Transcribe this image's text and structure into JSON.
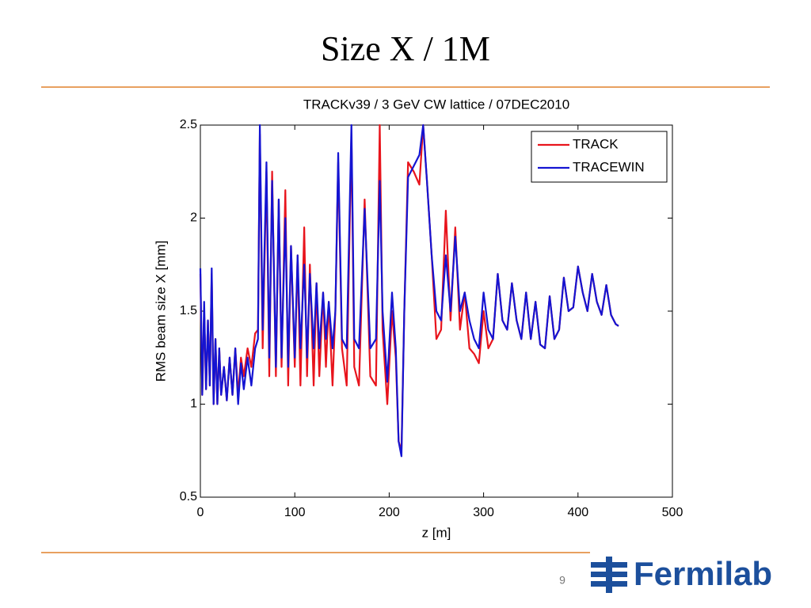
{
  "slide": {
    "title": "Size X / 1M",
    "page_number": "9",
    "logo_text": "Fermilab"
  },
  "chart_data": {
    "type": "line",
    "title": "TRACKv39 / 3 GeV CW lattice / 07DEC2010",
    "x_label": "z [m]",
    "y_label": "RMS beam size X [mm]",
    "x": [
      0,
      2,
      4,
      6,
      8,
      10,
      12,
      14,
      16,
      18,
      20,
      22,
      25,
      28,
      31,
      34,
      37,
      40,
      43,
      46,
      50,
      54,
      58,
      61,
      63,
      66,
      70,
      73,
      76,
      80,
      83,
      86,
      90,
      93,
      96,
      100,
      103,
      106,
      110,
      113,
      116,
      120,
      123,
      126,
      130,
      133,
      136,
      140,
      143,
      146,
      150,
      155,
      160,
      163,
      168,
      174,
      180,
      186,
      190,
      193,
      198,
      203,
      207,
      210,
      213,
      216,
      220,
      226,
      232,
      236,
      240,
      245,
      250,
      255,
      260,
      265,
      270,
      275,
      280,
      285,
      290,
      295,
      300,
      305,
      310,
      315,
      320,
      325,
      330,
      335,
      340,
      345,
      350,
      355,
      360,
      365,
      370,
      375,
      380,
      385,
      390,
      395,
      400,
      405,
      410,
      415,
      420,
      425,
      430,
      435,
      440,
      443
    ],
    "series": [
      {
        "name": "TRACK",
        "color": "#e8141c",
        "values": [
          1.7,
          1.05,
          1.5,
          1.08,
          1.45,
          1.1,
          1.7,
          1.0,
          1.35,
          1.0,
          1.3,
          1.05,
          1.2,
          1.02,
          1.25,
          1.05,
          1.3,
          1.05,
          1.25,
          1.15,
          1.3,
          1.2,
          1.38,
          1.4,
          2.45,
          1.3,
          2.25,
          1.15,
          2.25,
          1.15,
          2.1,
          1.2,
          2.15,
          1.1,
          1.85,
          1.2,
          1.8,
          1.1,
          1.95,
          1.15,
          1.75,
          1.1,
          1.65,
          1.15,
          1.6,
          1.2,
          1.55,
          1.1,
          1.5,
          2.3,
          1.3,
          1.1,
          2.45,
          1.2,
          1.1,
          2.1,
          1.15,
          1.1,
          2.5,
          1.4,
          1.0,
          1.5,
          1.25,
          0.8,
          0.75,
          1.5,
          2.3,
          2.25,
          2.18,
          2.5,
          2.2,
          1.8,
          1.35,
          1.4,
          2.04,
          1.45,
          1.95,
          1.4,
          1.6,
          1.3,
          1.27,
          1.22,
          1.5,
          1.3,
          1.35,
          1.7,
          1.45,
          1.4,
          1.65,
          1.45,
          1.35,
          1.6,
          1.35,
          1.55,
          1.32,
          1.3,
          1.58,
          1.35,
          1.4,
          1.68,
          1.5,
          1.52,
          1.74,
          1.6,
          1.5,
          1.7,
          1.55,
          1.48,
          1.64,
          1.48,
          1.43,
          1.42
        ]
      },
      {
        "name": "TRACEWIN",
        "color": "#1414d2",
        "values": [
          1.73,
          1.05,
          1.55,
          1.08,
          1.45,
          1.1,
          1.73,
          1.0,
          1.35,
          1.0,
          1.3,
          1.05,
          1.2,
          1.02,
          1.25,
          1.05,
          1.3,
          1.0,
          1.22,
          1.08,
          1.25,
          1.1,
          1.3,
          1.35,
          2.5,
          1.4,
          2.3,
          1.25,
          2.2,
          1.2,
          2.1,
          1.25,
          2.0,
          1.2,
          1.85,
          1.25,
          1.8,
          1.3,
          1.75,
          1.25,
          1.7,
          1.3,
          1.65,
          1.3,
          1.6,
          1.35,
          1.55,
          1.3,
          1.5,
          2.35,
          1.35,
          1.3,
          2.5,
          1.35,
          1.3,
          2.05,
          1.3,
          1.35,
          2.2,
          1.5,
          1.12,
          1.6,
          1.3,
          0.8,
          0.72,
          1.5,
          2.22,
          2.28,
          2.34,
          2.5,
          2.2,
          1.8,
          1.5,
          1.45,
          1.8,
          1.5,
          1.9,
          1.5,
          1.6,
          1.45,
          1.35,
          1.3,
          1.6,
          1.4,
          1.35,
          1.7,
          1.45,
          1.4,
          1.65,
          1.45,
          1.35,
          1.6,
          1.35,
          1.55,
          1.32,
          1.3,
          1.58,
          1.35,
          1.4,
          1.68,
          1.5,
          1.52,
          1.74,
          1.6,
          1.5,
          1.7,
          1.55,
          1.48,
          1.64,
          1.48,
          1.43,
          1.42
        ]
      }
    ],
    "xlim": [
      0,
      500
    ],
    "xticks": [
      0,
      100,
      200,
      300,
      400,
      500
    ],
    "ylim": [
      0.5,
      2.5
    ],
    "yticks": [
      0.5,
      1,
      1.5,
      2,
      2.5
    ],
    "legend": "upper right"
  }
}
